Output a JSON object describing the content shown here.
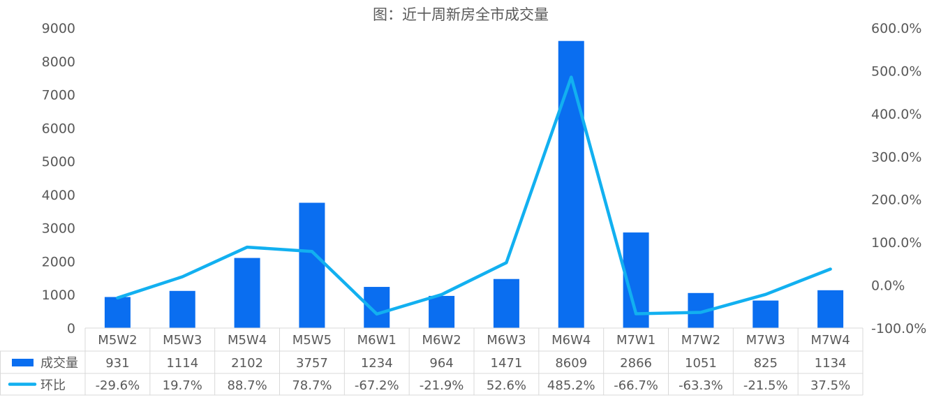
{
  "chart_data": {
    "type": "bar",
    "title": "图：近十周新房全市成交量",
    "categories": [
      "M5W2",
      "M5W3",
      "M5W4",
      "M5W5",
      "M6W1",
      "M6W2",
      "M6W3",
      "M6W4",
      "M7W1",
      "M7W2",
      "M7W3",
      "M7W4"
    ],
    "series": [
      {
        "name": "成交量",
        "type": "bar",
        "axis": "left",
        "color": "#0A6EF0",
        "values": [
          931,
          1114,
          2102,
          3757,
          1234,
          964,
          1471,
          8609,
          2866,
          1051,
          825,
          1134
        ],
        "labels": [
          "931",
          "1114",
          "2102",
          "3757",
          "1234",
          "964",
          "1471",
          "8609",
          "2866",
          "1051",
          "825",
          "1134"
        ]
      },
      {
        "name": "环比",
        "type": "line",
        "axis": "right",
        "color": "#12B0F0",
        "values": [
          -29.6,
          19.7,
          88.7,
          78.7,
          -67.2,
          -21.9,
          52.6,
          485.2,
          -66.7,
          -63.3,
          -21.5,
          37.5
        ],
        "labels": [
          "-29.6%",
          "19.7%",
          "88.7%",
          "78.7%",
          "-67.2%",
          "-21.9%",
          "52.6%",
          "485.2%",
          "-66.7%",
          "-63.3%",
          "-21.5%",
          "37.5%"
        ]
      }
    ],
    "y_left": {
      "ylim": [
        0,
        9000
      ],
      "ticks": [
        "0",
        "1000",
        "2000",
        "3000",
        "4000",
        "5000",
        "6000",
        "7000",
        "8000",
        "9000"
      ]
    },
    "y_right": {
      "ylim": [
        -100,
        600
      ],
      "ticks": [
        "-100.0%",
        "0.0%",
        "100.0%",
        "200.0%",
        "300.0%",
        "400.0%",
        "500.0%",
        "600.0%"
      ]
    },
    "grid": false,
    "legend": "data-table"
  }
}
